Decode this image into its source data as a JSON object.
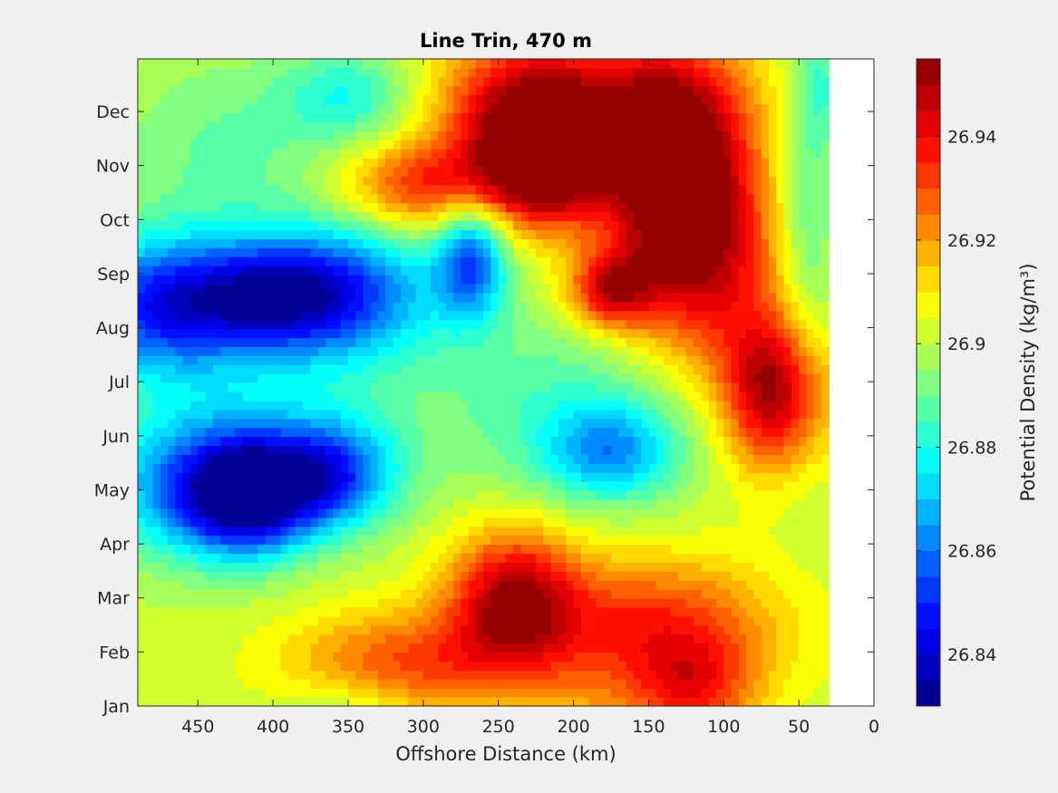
{
  "chart_data": {
    "type": "heatmap",
    "title": "Line Trin, 470 m",
    "xlabel": "Offshore Distance (km)",
    "ylabel": "",
    "colorbar_label": "Potential Density (kg/m³)",
    "xlim": [
      0,
      490
    ],
    "x_reversed": true,
    "x_ticks": [
      450,
      400,
      350,
      300,
      250,
      200,
      150,
      100,
      50,
      0
    ],
    "x_tick_labels": [
      "450",
      "400",
      "350",
      "300",
      "250",
      "200",
      "150",
      "100",
      "50",
      "0"
    ],
    "y_tick_labels": [
      "Jan",
      "Feb",
      "Mar",
      "Apr",
      "May",
      "Jun",
      "Jul",
      "Aug",
      "Sep",
      "Oct",
      "Nov",
      "Dec"
    ],
    "data_x_range": [
      30,
      490
    ],
    "colorbar_ticks": [
      26.84,
      26.86,
      26.88,
      26.9,
      26.92,
      26.94
    ],
    "colorbar_tick_labels": [
      "26.84",
      "26.86",
      "26.88",
      "26.9",
      "26.92",
      "26.94"
    ],
    "colorbar_range": [
      26.83,
      26.955
    ],
    "colormap": "jet",
    "background": 26.902,
    "features": [
      {
        "x": 415,
        "month": 3.9,
        "value": 26.838,
        "sx": 30,
        "sy": 0.75
      },
      {
        "x": 360,
        "month": 4.3,
        "value": 26.858,
        "sx": 30,
        "sy": 0.7
      },
      {
        "x": 460,
        "month": 4.0,
        "value": 26.872,
        "sx": 40,
        "sy": 0.9
      },
      {
        "x": 400,
        "month": 7.6,
        "value": 26.847,
        "sx": 45,
        "sy": 0.75
      },
      {
        "x": 480,
        "month": 7.4,
        "value": 26.857,
        "sx": 40,
        "sy": 0.9
      },
      {
        "x": 340,
        "month": 7.7,
        "value": 26.873,
        "sx": 45,
        "sy": 1.0
      },
      {
        "x": 268,
        "month": 8.3,
        "value": 26.858,
        "sx": 17,
        "sy": 0.8
      },
      {
        "x": 175,
        "month": 4.7,
        "value": 26.872,
        "sx": 30,
        "sy": 0.6
      },
      {
        "x": 420,
        "month": 5.2,
        "value": 26.886,
        "sx": 60,
        "sy": 1.2
      },
      {
        "x": 350,
        "month": 11.3,
        "value": 26.882,
        "sx": 30,
        "sy": 0.6
      },
      {
        "x": 430,
        "month": 10.3,
        "value": 26.889,
        "sx": 55,
        "sy": 1.3
      },
      {
        "x": 130,
        "month": 9.8,
        "value": 26.957,
        "sx": 32,
        "sy": 1.4
      },
      {
        "x": 215,
        "month": 10.0,
        "value": 26.949,
        "sx": 30,
        "sy": 0.8
      },
      {
        "x": 240,
        "month": 10.8,
        "value": 26.932,
        "sx": 35,
        "sy": 1.1
      },
      {
        "x": 180,
        "month": 11.3,
        "value": 26.933,
        "sx": 60,
        "sy": 0.9
      },
      {
        "x": 300,
        "month": 9.6,
        "value": 26.935,
        "sx": 40,
        "sy": 0.6
      },
      {
        "x": 170,
        "month": 9.3,
        "value": 26.903,
        "sx": 12,
        "sy": 1.0
      },
      {
        "x": 65,
        "month": 5.8,
        "value": 26.952,
        "sx": 25,
        "sy": 1.0
      },
      {
        "x": 175,
        "month": 7.7,
        "value": 26.94,
        "sx": 20,
        "sy": 0.5
      },
      {
        "x": 110,
        "month": 8.0,
        "value": 26.932,
        "sx": 40,
        "sy": 1.5
      },
      {
        "x": 240,
        "month": 2.0,
        "value": 26.946,
        "sx": 30,
        "sy": 0.9
      },
      {
        "x": 150,
        "month": 1.5,
        "value": 26.934,
        "sx": 60,
        "sy": 0.9
      },
      {
        "x": 310,
        "month": 0.8,
        "value": 26.93,
        "sx": 55,
        "sy": 0.7
      },
      {
        "x": 190,
        "month": 0.1,
        "value": 26.908,
        "sx": 30,
        "sy": 0.5
      },
      {
        "x": 350,
        "month": 0.0,
        "value": 26.892,
        "sx": 30,
        "sy": 0.4
      },
      {
        "x": 120,
        "month": 0.3,
        "value": 26.93,
        "sx": 30,
        "sy": 0.7
      },
      {
        "x": 200,
        "month": 5.5,
        "value": 26.885,
        "sx": 70,
        "sy": 1.2
      },
      {
        "x": 45,
        "month": 8.5,
        "value": 26.885,
        "sx": 15,
        "sy": 2.5
      },
      {
        "x": 35,
        "month": 11.5,
        "value": 26.888,
        "sx": 10,
        "sy": 0.8
      }
    ]
  }
}
